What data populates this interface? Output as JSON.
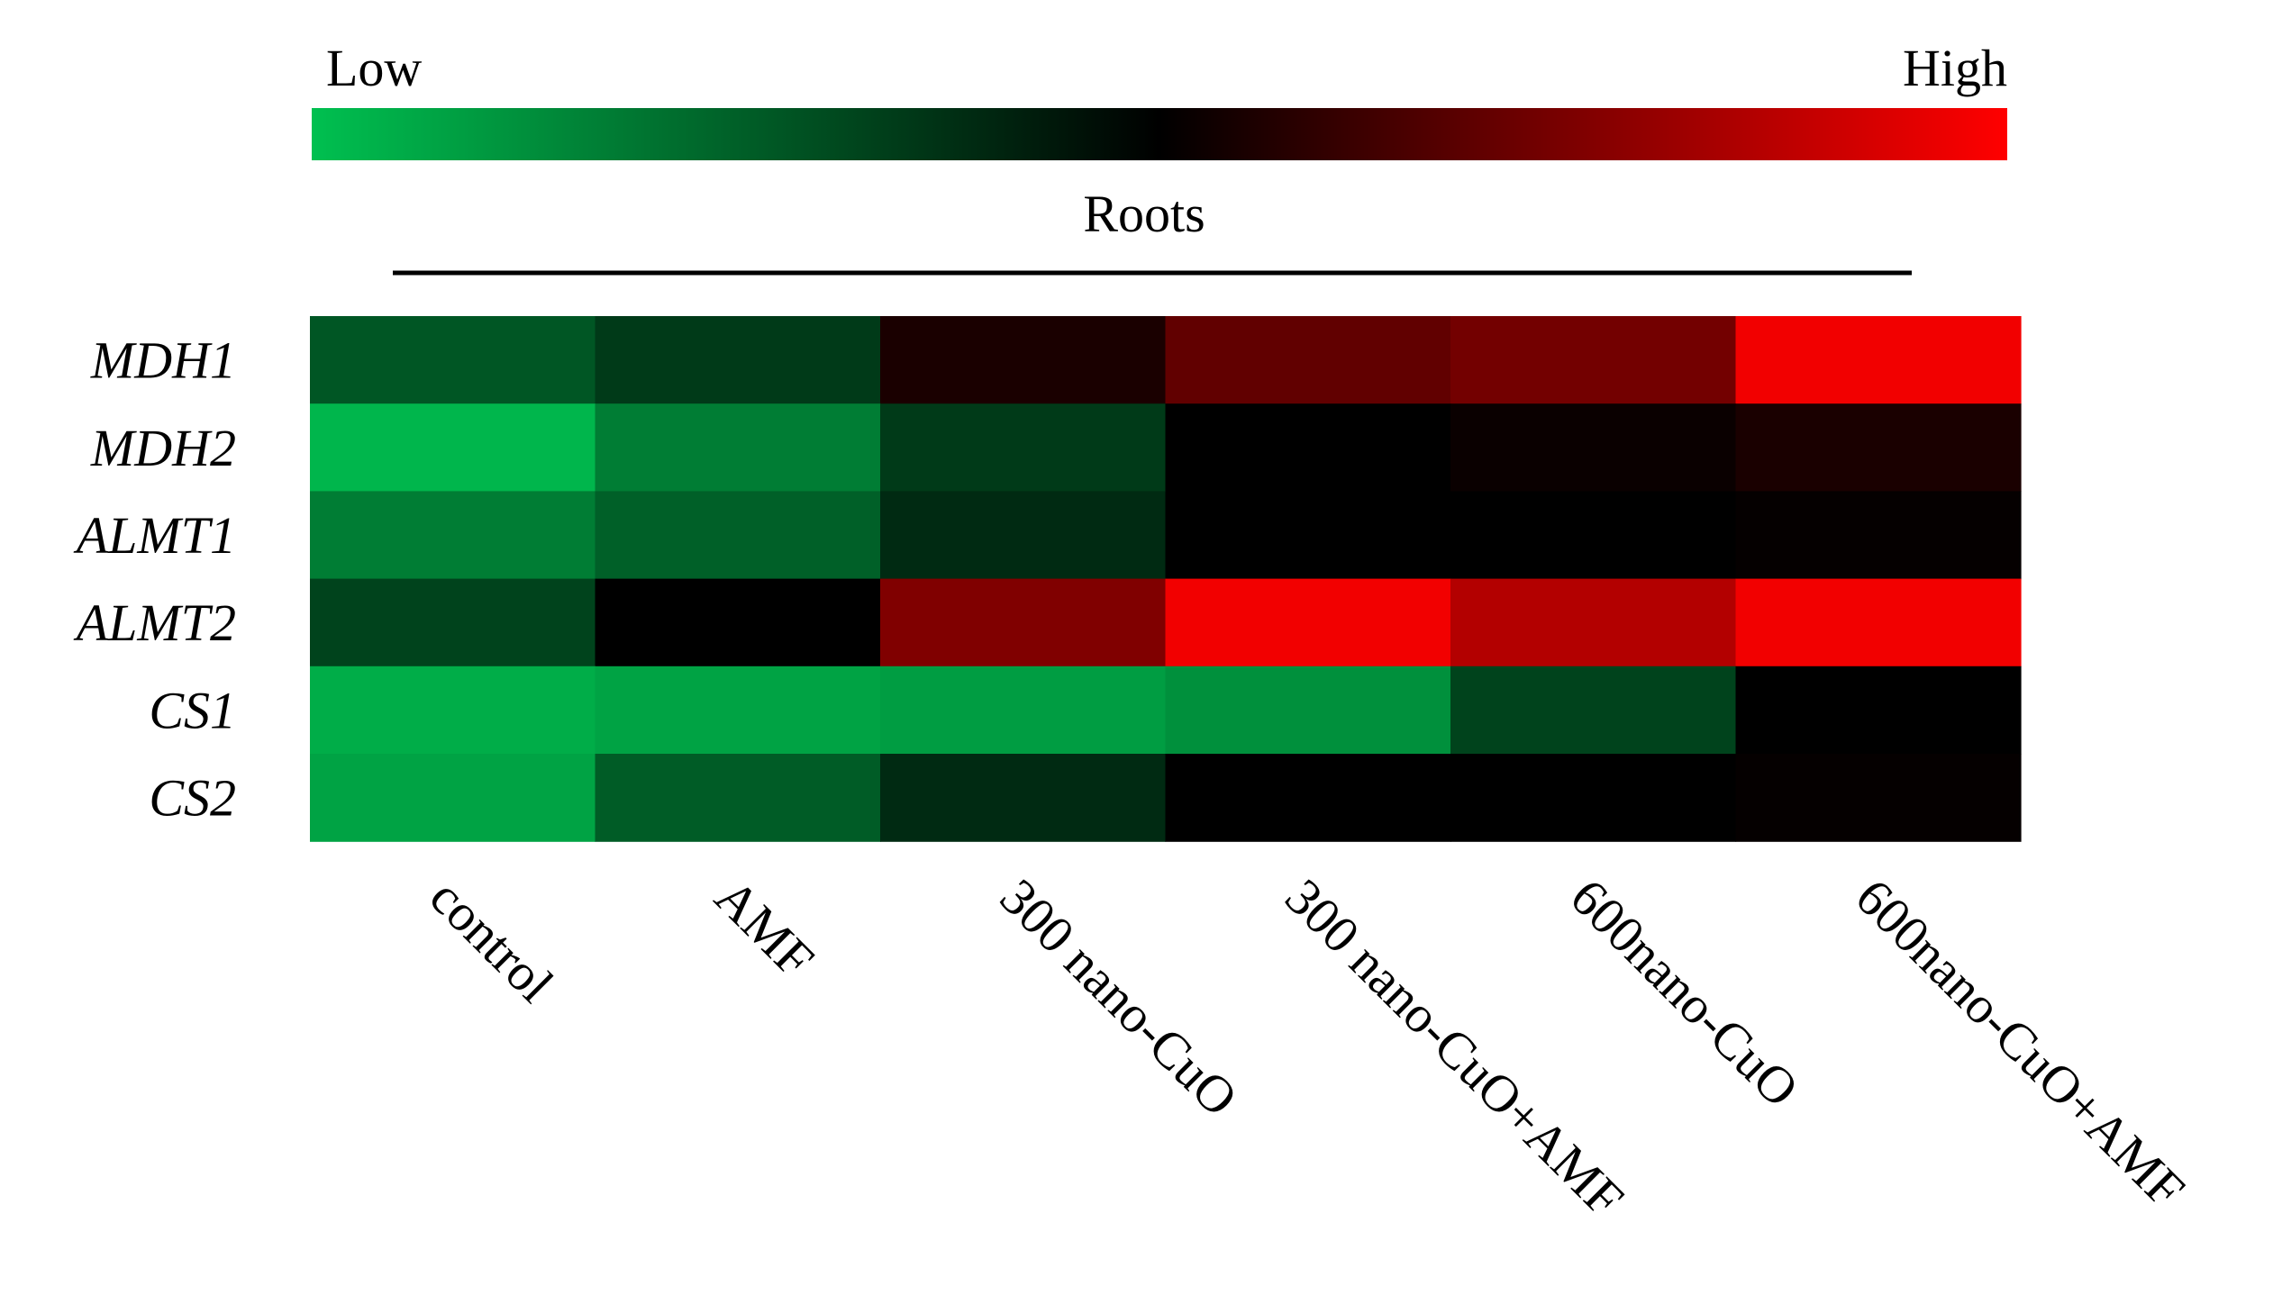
{
  "chart_data": {
    "type": "heatmap",
    "title": "Roots",
    "color_scale": {
      "low_label": "Low",
      "high_label": "High",
      "low_color": "#00c050",
      "mid_color": "#000000",
      "high_color": "#ff0000",
      "range": [
        -1,
        1
      ]
    },
    "rows": [
      "MDH1",
      "MDH2",
      "ALMT1",
      "ALMT2",
      "CS1",
      "CS2"
    ],
    "columns": [
      "control",
      "AMF",
      "300 nano-CuO",
      "300 nano-CuO+AMF",
      "600nano-CuO",
      "600nano-CuO+AMF"
    ],
    "values": [
      [
        -0.45,
        -0.3,
        0.1,
        0.38,
        0.45,
        0.95
      ],
      [
        -0.95,
        -0.65,
        -0.3,
        0.0,
        0.04,
        0.1
      ],
      [
        -0.65,
        -0.5,
        -0.22,
        0.0,
        0.0,
        0.02
      ],
      [
        -0.35,
        0.0,
        0.5,
        0.95,
        0.7,
        0.95
      ],
      [
        -0.9,
        -0.85,
        -0.82,
        -0.75,
        -0.35,
        0.0
      ],
      [
        -0.85,
        -0.48,
        -0.22,
        0.0,
        0.0,
        0.02
      ]
    ]
  }
}
